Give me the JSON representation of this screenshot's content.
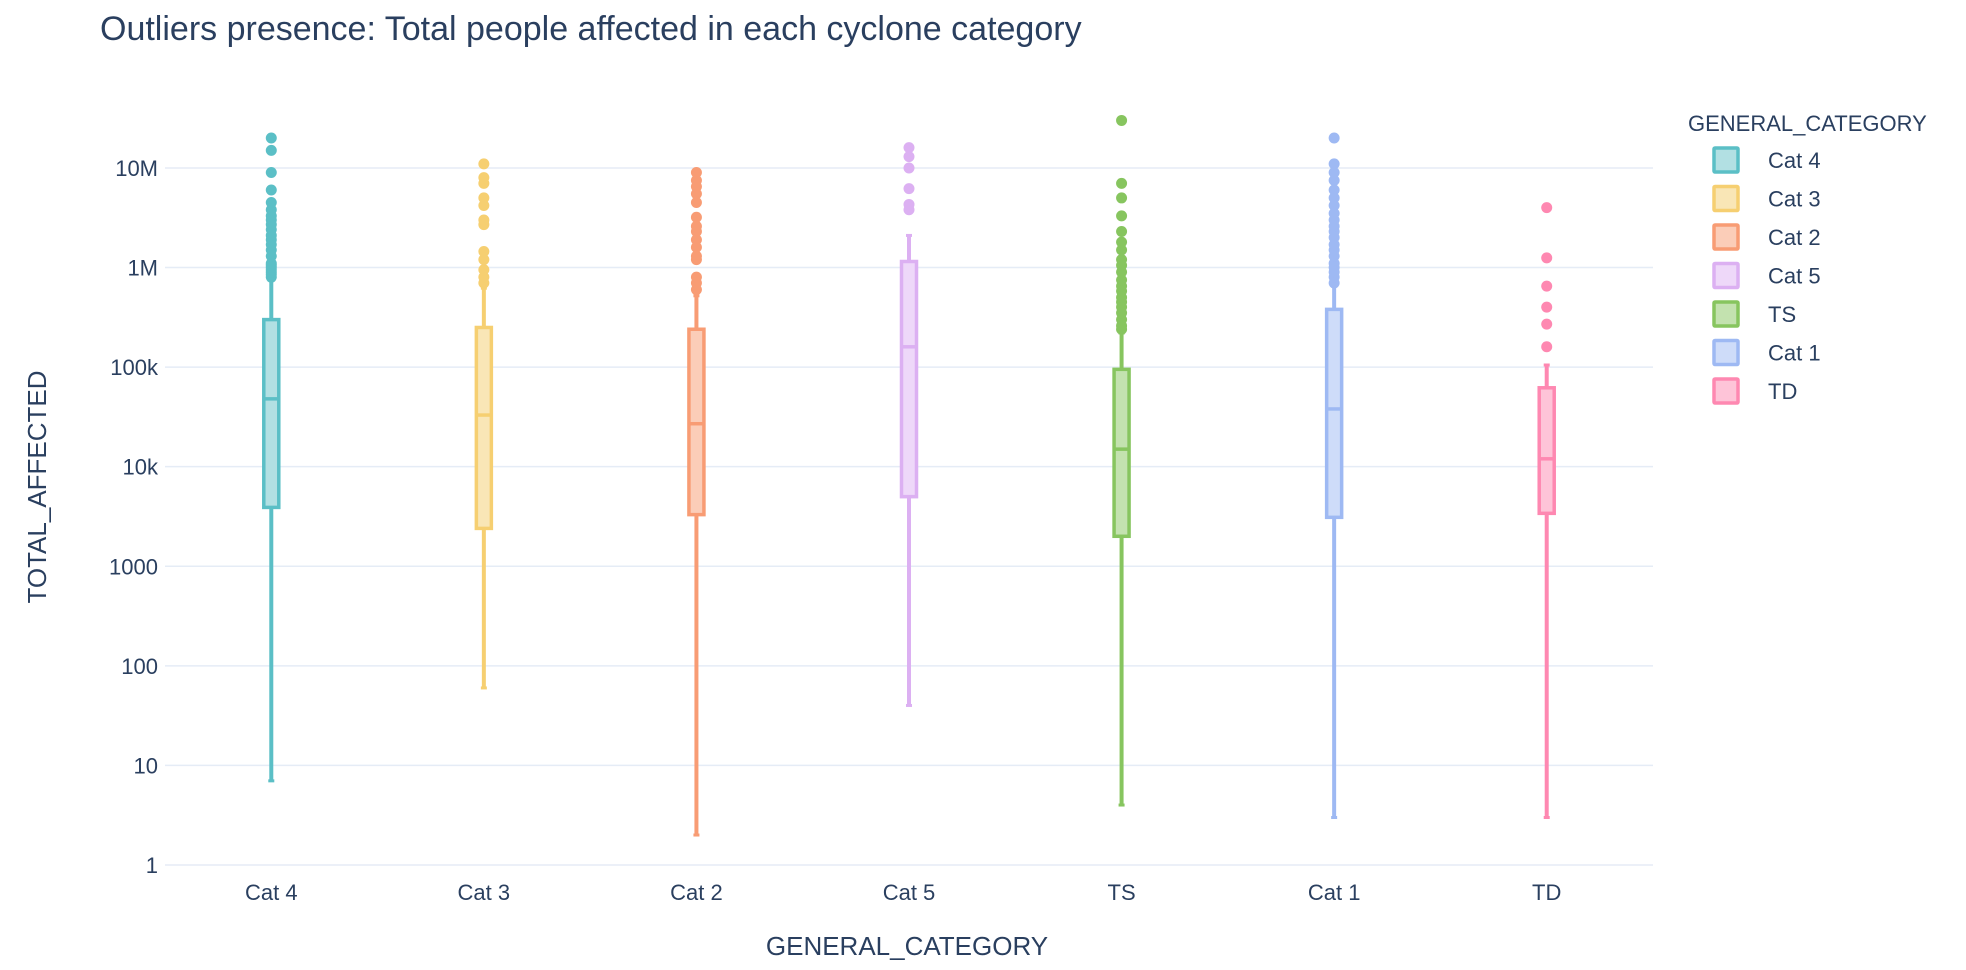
{
  "chart_data": {
    "type": "box",
    "title": "Outliers presence: Total people affected in each cyclone category",
    "xlabel": "GENERAL_CATEGORY",
    "ylabel": "TOTAL_AFFECTED",
    "yscale": "log",
    "ylim": [
      1,
      40000000
    ],
    "yticks": [
      {
        "value": 1,
        "label": "1"
      },
      {
        "value": 10,
        "label": "10"
      },
      {
        "value": 100,
        "label": "100"
      },
      {
        "value": 1000,
        "label": "1000"
      },
      {
        "value": 10000,
        "label": "10k"
      },
      {
        "value": 100000,
        "label": "100k"
      },
      {
        "value": 1000000,
        "label": "1M"
      },
      {
        "value": 10000000,
        "label": "10M"
      }
    ],
    "grid": true,
    "legend": {
      "title": "GENERAL_CATEGORY",
      "placement": "top-right"
    },
    "categories": [
      "Cat 4",
      "Cat 3",
      "Cat 2",
      "Cat 5",
      "TS",
      "Cat 1",
      "TD"
    ],
    "series": [
      {
        "name": "Cat 4",
        "color": "#5bbfc6",
        "fill": "#b2e0e3",
        "min": 7,
        "q1": 3900,
        "median": 48000,
        "q3": 300000,
        "max": 780000,
        "outliers": [
          800000,
          850000,
          900000,
          950000,
          1000000,
          1050000,
          1100000,
          1300000,
          1500000,
          1700000,
          1900000,
          2100000,
          2400000,
          2700000,
          3000000,
          3300000,
          3800000,
          4500000,
          6000000,
          9000000,
          15000000,
          20000000
        ]
      },
      {
        "name": "Cat 3",
        "color": "#f6cf71",
        "fill": "#f9e6b6",
        "min": 60,
        "q1": 2400,
        "median": 33000,
        "q3": 250000,
        "max": 620000,
        "outliers": [
          700000,
          800000,
          950000,
          1200000,
          1450000,
          2700000,
          3000000,
          4200000,
          5000000,
          7000000,
          8000000,
          11000000
        ]
      },
      {
        "name": "Cat 2",
        "color": "#f89c74",
        "fill": "#fbcdb8",
        "min": 2,
        "q1": 3300,
        "median": 27000,
        "q3": 240000,
        "max": 520000,
        "outliers": [
          600000,
          700000,
          800000,
          1200000,
          1300000,
          1600000,
          1900000,
          2300000,
          2600000,
          3200000,
          4500000,
          5500000,
          6500000,
          7500000,
          9000000
        ]
      },
      {
        "name": "Cat 5",
        "color": "#dcb0f2",
        "fill": "#eed8f9",
        "min": 40,
        "q1": 5000,
        "median": 160000,
        "q3": 1150000,
        "max": 2100000,
        "outliers": [
          3800000,
          4300000,
          6200000,
          10000000,
          13000000,
          16000000
        ]
      },
      {
        "name": "TS",
        "color": "#87c55f",
        "fill": "#c3e2af",
        "min": 4,
        "q1": 2000,
        "median": 15000,
        "q3": 95000,
        "max": 220000,
        "outliers": [
          240000,
          260000,
          300000,
          350000,
          400000,
          450000,
          500000,
          580000,
          650000,
          750000,
          900000,
          1050000,
          1200000,
          1500000,
          1800000,
          2300000,
          3300000,
          5000000,
          7000000,
          30000000
        ]
      },
      {
        "name": "Cat 1",
        "color": "#9eb9f3",
        "fill": "#cedcf9",
        "min": 3,
        "q1": 3100,
        "median": 38000,
        "q3": 380000,
        "max": 650000,
        "outliers": [
          700000,
          800000,
          900000,
          1000000,
          1100000,
          1300000,
          1500000,
          1700000,
          2000000,
          2300000,
          2600000,
          3000000,
          3500000,
          4200000,
          5000000,
          6000000,
          7500000,
          9000000,
          11000000,
          20000000
        ]
      },
      {
        "name": "TD",
        "color": "#fe88b1",
        "fill": "#fec4d8",
        "min": 3,
        "q1": 3400,
        "median": 12000,
        "q3": 62000,
        "max": 105000,
        "outliers": [
          160000,
          270000,
          400000,
          650000,
          1250000,
          4000000
        ]
      }
    ]
  }
}
